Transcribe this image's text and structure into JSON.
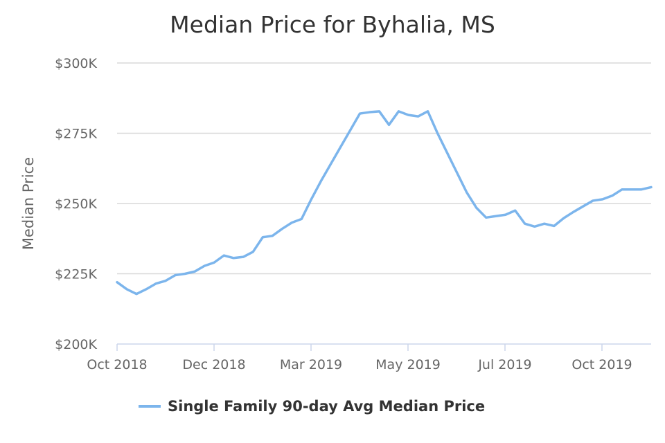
{
  "chart_data": {
    "type": "line",
    "title": "Median Price for Byhalia, MS",
    "ylabel": "Median Price",
    "xlabel": "",
    "ylim": [
      200000,
      300000
    ],
    "y_ticks": [
      200000,
      225000,
      250000,
      275000,
      300000
    ],
    "y_tick_labels": [
      "$200K",
      "$225K",
      "$250K",
      "$275K",
      "$300K"
    ],
    "x_tick_labels": [
      "Oct 2018",
      "Dec 2018",
      "Mar 2019",
      "May 2019",
      "Jul 2019",
      "Oct 2019"
    ],
    "grid": true,
    "legend_position": "bottom",
    "series_color": "#7cb5ec",
    "series": [
      {
        "name": "Single Family 90-day Avg Median Price",
        "values": [
          222000,
          219500,
          217800,
          219500,
          221500,
          222500,
          224500,
          225000,
          225800,
          227800,
          229000,
          231500,
          230600,
          231000,
          232800,
          238000,
          238500,
          241000,
          243200,
          244500,
          251500,
          258000,
          264000,
          270000,
          276000,
          282000,
          282500,
          282800,
          278000,
          282800,
          281500,
          281000,
          282800,
          275000,
          268000,
          261000,
          254000,
          248500,
          245000,
          245500,
          246000,
          247500,
          242800,
          241800,
          242800,
          242000,
          244800,
          247000,
          249000,
          251000,
          251500,
          252800,
          255000,
          255000,
          255000,
          255800
        ]
      }
    ]
  }
}
